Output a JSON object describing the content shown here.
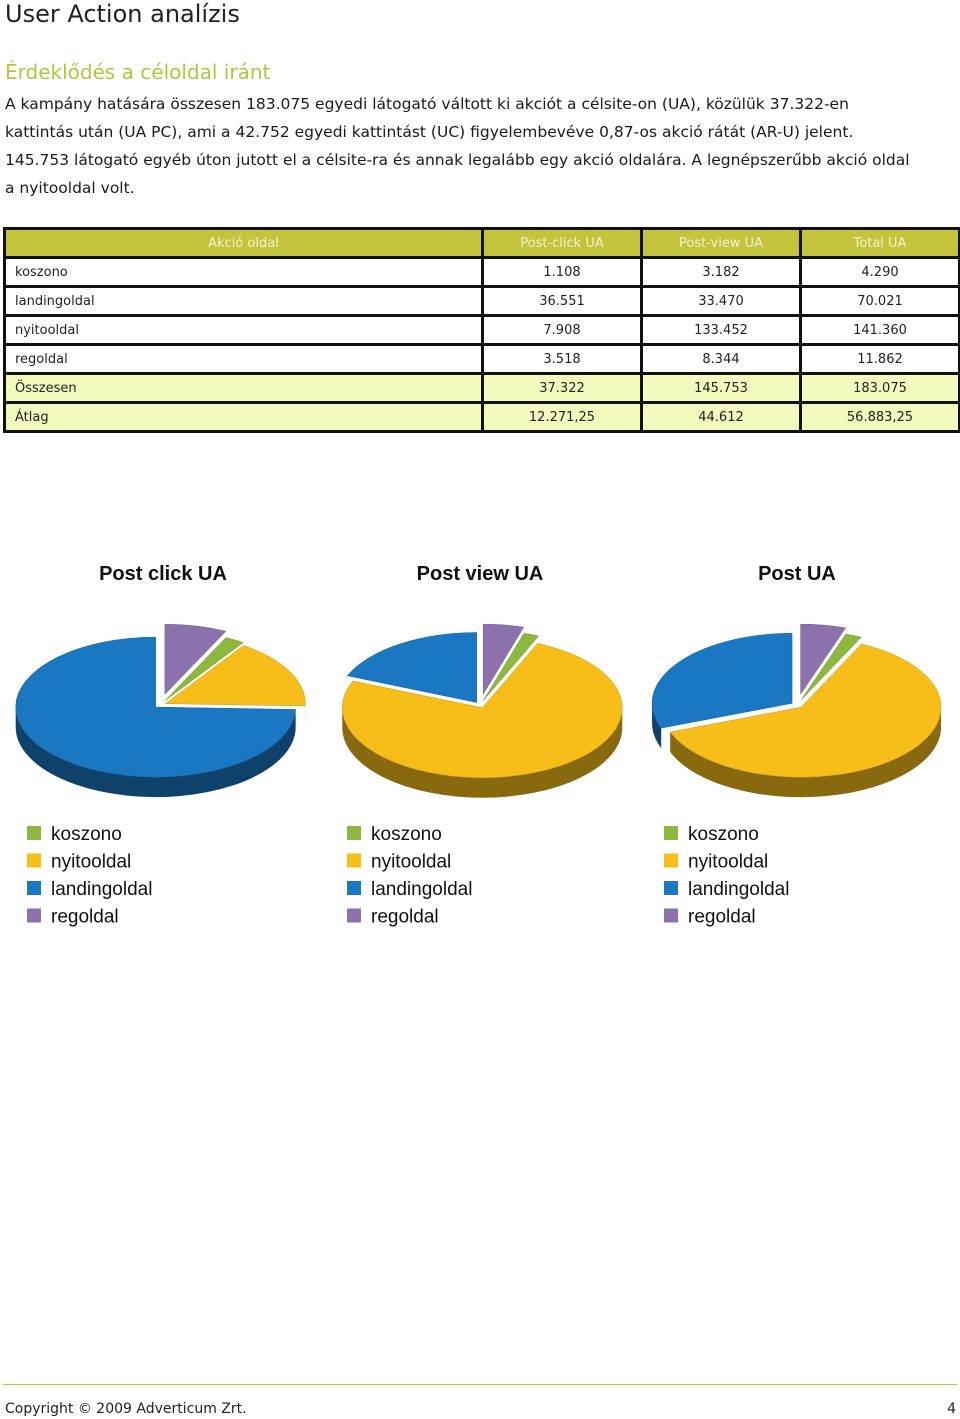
{
  "header": {
    "title": "User Action analízis"
  },
  "section": {
    "title": "Érdeklődés a céloldal iránt",
    "paragraph_lines": [
      "A kampány hatására összesen 183.075 egyedi látogató váltott ki akciót a célsite-on (UA), közülük 37.322-en",
      "kattintás után (UA PC), ami a 42.752 egyedi kattintást (UC) figyelembevéve 0,87-os akció rátát (AR-U) jelent.",
      "145.753 látogató egyéb úton jutott el a célsite-ra és annak legalább egy akció oldalára. A legnépszerűbb akció oldal",
      "a nyitooldal volt."
    ]
  },
  "table": {
    "headers": [
      "Akció oldal",
      "Post-click UA",
      "Post-view UA",
      "Total UA"
    ],
    "rows": [
      [
        "koszono",
        "1.108",
        "3.182",
        "4.290"
      ],
      [
        "landingoldal",
        "36.551",
        "33.470",
        "70.021"
      ],
      [
        "nyitooldal",
        "7.908",
        "133.452",
        "141.360"
      ],
      [
        "regoldal",
        "3.518",
        "8.344",
        "11.862"
      ]
    ],
    "summary_rows": [
      [
        "Összesen",
        "37.322",
        "145.753",
        "183.075"
      ],
      [
        "Átlag",
        "12.271,25",
        "44.612",
        "56.883,25"
      ]
    ]
  },
  "colors": {
    "koszono": "#8cb83c",
    "nyitooldal": "#f7be1a",
    "landingoldal": "#1a78c2",
    "regoldal": "#8c72ac",
    "table_header": "#c4c43c",
    "summary_row": "#f4f9bd",
    "section_title": "#b9c43d"
  },
  "chart_data": [
    {
      "type": "pie",
      "title": "Post click UA",
      "categories": [
        "koszono",
        "nyitooldal",
        "landingoldal",
        "regoldal"
      ],
      "values": [
        1108,
        7908,
        36551,
        3518
      ],
      "legend": [
        "koszono",
        "nyitooldal",
        "landingoldal",
        "regoldal"
      ],
      "legend_position": "bottom"
    },
    {
      "type": "pie",
      "title": "Post view UA",
      "categories": [
        "koszono",
        "nyitooldal",
        "landingoldal",
        "regoldal"
      ],
      "values": [
        3182,
        133452,
        33470,
        8344
      ],
      "legend": [
        "koszono",
        "nyitooldal",
        "landingoldal",
        "regoldal"
      ],
      "legend_position": "bottom"
    },
    {
      "type": "pie",
      "title": "Post UA",
      "categories": [
        "koszono",
        "nyitooldal",
        "landingoldal",
        "regoldal"
      ],
      "values": [
        4290,
        141360,
        70021,
        11862
      ],
      "legend": [
        "koszono",
        "nyitooldal",
        "landingoldal",
        "regoldal"
      ],
      "legend_position": "bottom"
    }
  ],
  "footer": {
    "copyright": "Copyright © 2009 Adverticum Zrt.",
    "page_number": "4"
  }
}
